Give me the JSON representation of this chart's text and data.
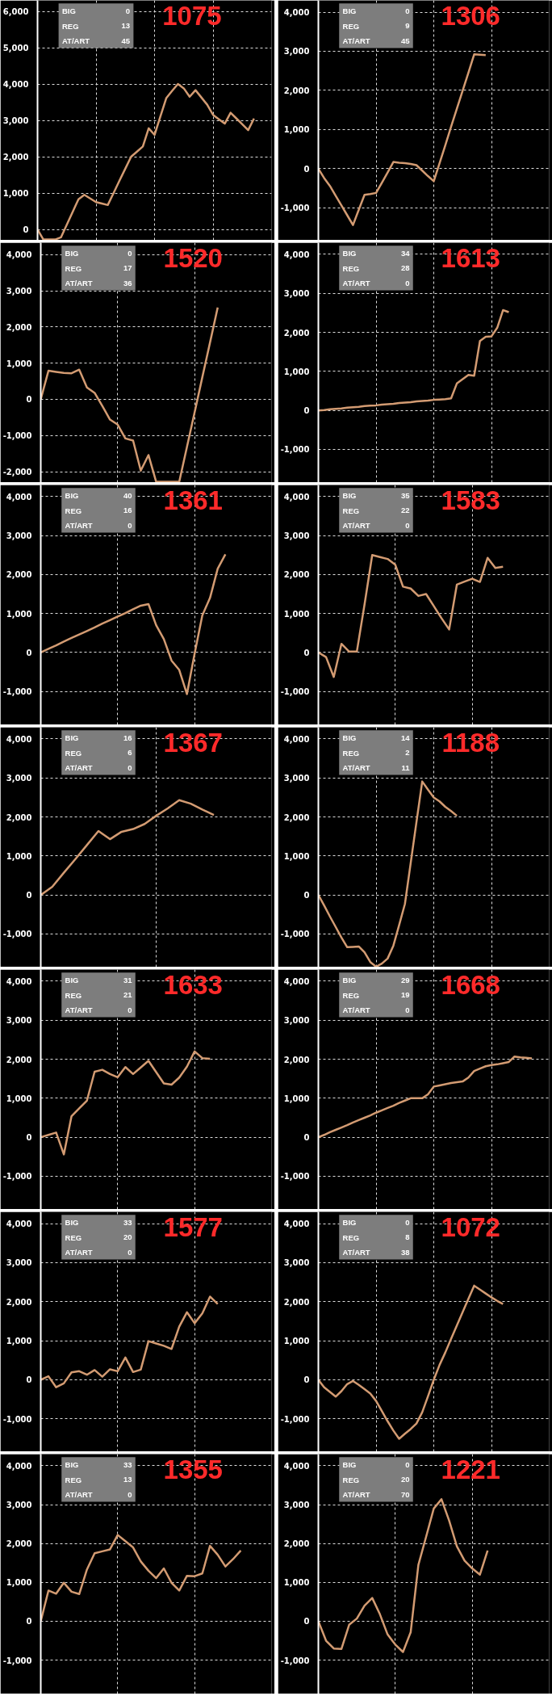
{
  "chart_data": [
    {
      "type": "line",
      "title": "1075",
      "annotations": [
        "BIG",
        "0",
        "REG",
        "13",
        "AT/ART",
        "45"
      ],
      "categories": [
        null,
        null,
        null,
        null,
        null,
        null,
        null,
        null,
        null,
        null,
        null,
        null,
        null,
        null,
        null,
        null,
        null,
        null,
        null,
        null,
        null,
        null,
        null,
        null,
        null,
        null,
        null,
        null,
        null,
        null,
        null,
        null,
        null,
        null,
        null,
        null,
        null,
        null,
        null,
        null,
        null
      ],
      "ylim": [
        -300,
        6300
      ],
      "yticks": [
        0,
        {
          "value": 1000,
          "label": "1,000"
        },
        {
          "value": 2000,
          "label": "2,000"
        },
        {
          "value": 3000,
          "label": "3,000"
        },
        {
          "value": 4000,
          "label": "4,000"
        },
        {
          "value": 5000,
          "label": "5,000"
        },
        {
          "value": 6000,
          "label": "6,000"
        }
      ],
      "grid": true,
      "tick_labels": "y",
      "series": [
        {
          "color": "#d39b72",
          "values": [
            0,
            -280,
            -280,
            -280,
            -220,
            130,
            480,
            830,
            950,
            850,
            750,
            710,
            670,
            1000,
            1340,
            1670,
            2000,
            2140,
            2280,
            2780,
            2600,
            3110,
            3610,
            3810,
            4000,
            3880,
            3650,
            3830,
            3630,
            3430,
            3150,
            3030,
            2910,
            3210,
            3050,
            2890,
            2730,
            3050,
            null,
            null,
            null
          ]
        }
      ]
    },
    {
      "type": "line",
      "title": "1306",
      "annotations": [
        "BIG",
        "0",
        "REG",
        "9",
        "AT/ART",
        "45"
      ],
      "categories": [
        null,
        null,
        null,
        null,
        null,
        null,
        null,
        null,
        null,
        null,
        null,
        null,
        null,
        null,
        null,
        null,
        null,
        null,
        null,
        null,
        null,
        null,
        null,
        null,
        null,
        null,
        null,
        null,
        null,
        null,
        null,
        null,
        null,
        null,
        null,
        null,
        null,
        null,
        null,
        null,
        null
      ],
      "ylim": [
        -1830,
        4300
      ],
      "yticks": [
        {
          "value": -1000,
          "label": "-1,000"
        },
        0,
        {
          "value": 1000,
          "label": "1,000"
        },
        {
          "value": 2000,
          "label": "2,000"
        },
        {
          "value": 3000,
          "label": "3,000"
        },
        {
          "value": 4000,
          "label": "4,000"
        }
      ],
      "grid": true,
      "tick_labels": "y",
      "series": [
        {
          "color": "#d39b72",
          "values": [
            0,
            -240,
            -440,
            -690,
            -940,
            -1190,
            -1440,
            -1050,
            -670,
            -650,
            -620,
            -360,
            -100,
            170,
            150,
            140,
            120,
            90,
            -50,
            -190,
            -320,
            140,
            600,
            1070,
            1530,
            1990,
            2450,
            2920,
            2910,
            2900,
            null,
            null,
            null,
            null,
            null,
            null,
            null,
            null,
            null,
            null,
            null
          ]
        }
      ]
    },
    {
      "type": "line",
      "title": "1520",
      "annotations": [
        "BIG",
        "0",
        "REG",
        "17",
        "AT/ART",
        "36"
      ],
      "categories": [
        null,
        null,
        null,
        null,
        null,
        null,
        null,
        null,
        null,
        null,
        null,
        null,
        null,
        null,
        null,
        null,
        null,
        null,
        null,
        null,
        null,
        null,
        null,
        null,
        null,
        null,
        null,
        null,
        null,
        null,
        null
      ],
      "ylim": [
        -2300,
        4330
      ],
      "yticks": [
        {
          "value": -2000,
          "label": "-2,000"
        },
        {
          "value": -1000,
          "label": "-1,000"
        },
        0,
        {
          "value": 1000,
          "label": "1,000"
        },
        {
          "value": 2000,
          "label": "2,000"
        },
        {
          "value": 3000,
          "label": "3,000"
        },
        {
          "value": 4000,
          "label": "4,000"
        }
      ],
      "grid": true,
      "tick_labels": "y",
      "series": [
        {
          "color": "#d39b72",
          "values": [
            0,
            790,
            760,
            730,
            720,
            820,
            330,
            180,
            -180,
            -560,
            -700,
            -1080,
            -1140,
            -1970,
            -1540,
            -2280,
            -2280,
            -2280,
            -2280,
            -1320,
            -360,
            610,
            1570,
            2540,
            null,
            null,
            null,
            null,
            null,
            null,
            null
          ]
        }
      ]
    },
    {
      "type": "line",
      "title": "1613",
      "annotations": [
        "BIG",
        "34",
        "REG",
        "28",
        "AT/ART",
        "0"
      ],
      "categories": [
        null,
        null,
        null,
        null,
        null,
        null,
        null,
        null,
        null,
        null,
        null,
        null,
        null,
        null,
        null,
        null,
        null,
        null,
        null,
        null,
        null,
        null,
        null,
        null,
        null,
        null,
        null,
        null,
        null,
        null,
        null,
        null,
        null,
        null,
        null,
        null,
        null,
        null,
        null,
        null,
        null
      ],
      "ylim": [
        -1850,
        4300
      ],
      "yticks": [
        {
          "value": -1000,
          "label": "-1,000"
        },
        0,
        {
          "value": 1000,
          "label": "1,000"
        },
        {
          "value": 2000,
          "label": "2,000"
        },
        {
          "value": 3000,
          "label": "3,000"
        },
        {
          "value": 4000,
          "label": "4,000"
        }
      ],
      "grid": true,
      "tick_labels": "y",
      "series": [
        {
          "color": "#d39b72",
          "values": [
            0,
            10,
            30,
            40,
            50,
            70,
            80,
            90,
            110,
            120,
            130,
            150,
            160,
            170,
            190,
            200,
            210,
            230,
            240,
            250,
            270,
            280,
            290,
            310,
            690,
            800,
            910,
            890,
            1780,
            1890,
            1900,
            2120,
            2570,
            2520,
            null,
            null,
            null,
            null,
            null,
            null,
            null
          ]
        }
      ]
    },
    {
      "type": "line",
      "title": "1361",
      "annotations": [
        "BIG",
        "40",
        "REG",
        "16",
        "AT/ART",
        "0"
      ],
      "categories": [
        null,
        null,
        null,
        null,
        null,
        null,
        null,
        null,
        null,
        null,
        null,
        null,
        null,
        null,
        null,
        null,
        null,
        null,
        null,
        null,
        null,
        null,
        null,
        null,
        null,
        null,
        null,
        null,
        null,
        null,
        null
      ],
      "ylim": [
        -1860,
        4300
      ],
      "yticks": [
        {
          "value": -1000,
          "label": "-1,000"
        },
        0,
        {
          "value": 1000,
          "label": "1,000"
        },
        {
          "value": 2000,
          "label": "2,000"
        },
        {
          "value": 3000,
          "label": "3,000"
        },
        {
          "value": 4000,
          "label": "4,000"
        }
      ],
      "grid": true,
      "tick_labels": "y",
      "series": [
        {
          "color": "#d39b72",
          "values": [
            0,
            90,
            180,
            280,
            370,
            460,
            550,
            640,
            740,
            830,
            920,
            1010,
            1110,
            1200,
            1240,
            700,
            340,
            -210,
            -450,
            -1070,
            -30,
            950,
            1400,
            2150,
            2520,
            null,
            null,
            null,
            null,
            null,
            null
          ]
        }
      ]
    },
    {
      "type": "line",
      "title": "1583",
      "annotations": [
        "BIG",
        "35",
        "REG",
        "22",
        "AT/ART",
        "0"
      ],
      "categories": [
        null,
        null,
        null,
        null,
        null,
        null,
        null,
        null,
        null,
        null,
        null,
        null,
        null,
        null,
        null,
        null,
        null,
        null,
        null,
        null,
        null,
        null,
        null,
        null,
        null,
        null,
        null,
        null,
        null,
        null,
        null
      ],
      "ylim": [
        -1860,
        4300
      ],
      "yticks": [
        {
          "value": -1000,
          "label": "-1,000"
        },
        0,
        {
          "value": 1000,
          "label": "1,000"
        },
        {
          "value": 2000,
          "label": "2,000"
        },
        {
          "value": 3000,
          "label": "3,000"
        },
        {
          "value": 4000,
          "label": "4,000"
        }
      ],
      "grid": true,
      "tick_labels": "y",
      "series": [
        {
          "color": "#d39b72",
          "values": [
            0,
            -120,
            -630,
            220,
            20,
            20,
            1230,
            2500,
            2450,
            2400,
            2250,
            1690,
            1640,
            1450,
            1500,
            1190,
            880,
            590,
            1740,
            1820,
            1890,
            1810,
            2430,
            2170,
            2200,
            null,
            null,
            null,
            null,
            null,
            null
          ]
        }
      ]
    },
    {
      "type": "line",
      "title": "1367",
      "annotations": [
        "BIG",
        "16",
        "REG",
        "6",
        "AT/ART",
        "0"
      ],
      "categories": [
        null,
        null,
        null,
        null,
        null,
        null,
        null,
        null,
        null,
        null,
        null,
        null,
        null,
        null,
        null,
        null,
        null,
        null,
        null,
        null,
        null
      ],
      "ylim": [
        -1850,
        4300
      ],
      "yticks": [
        {
          "value": -1000,
          "label": "-1,000"
        },
        0,
        {
          "value": 1000,
          "label": "1,000"
        },
        {
          "value": 2000,
          "label": "2,000"
        },
        {
          "value": 3000,
          "label": "3,000"
        },
        {
          "value": 4000,
          "label": "4,000"
        }
      ],
      "grid": true,
      "tick_labels": "y",
      "series": [
        {
          "color": "#d39b72",
          "values": [
            0,
            210,
            570,
            920,
            1280,
            1640,
            1430,
            1620,
            1690,
            1820,
            2030,
            2220,
            2430,
            2340,
            2190,
            2050,
            null,
            null,
            null,
            null,
            null
          ]
        }
      ]
    },
    {
      "type": "line",
      "title": "1188",
      "annotations": [
        "BIG",
        "14",
        "REG",
        "2",
        "AT/ART",
        "11"
      ],
      "categories": [
        null,
        null,
        null,
        null,
        null,
        null,
        null,
        null,
        null,
        null,
        null,
        null,
        null,
        null,
        null,
        null,
        null,
        null,
        null,
        null,
        null,
        null,
        null,
        null,
        null,
        null,
        null,
        null,
        null,
        null,
        null,
        null,
        null,
        null,
        null,
        null,
        null,
        null,
        null,
        null,
        null
      ],
      "ylim": [
        -1850,
        4300
      ],
      "yticks": [
        {
          "value": -1000,
          "label": "-1,000"
        },
        0,
        {
          "value": 1000,
          "label": "1,000"
        },
        {
          "value": 2000,
          "label": "2,000"
        },
        {
          "value": 3000,
          "label": "3,000"
        },
        {
          "value": 4000,
          "label": "4,000"
        }
      ],
      "grid": true,
      "tick_labels": "y",
      "series": [
        {
          "color": "#d39b72",
          "values": [
            0,
            -270,
            -550,
            -820,
            -1090,
            -1340,
            -1330,
            -1320,
            -1470,
            -1720,
            -1840,
            -1760,
            -1630,
            -1300,
            -770,
            -230,
            820,
            1870,
            2910,
            2700,
            2500,
            2400,
            2260,
            2150,
            2030,
            null,
            null,
            null,
            null,
            null,
            null,
            null,
            null,
            null,
            null,
            null,
            null,
            null,
            null,
            null,
            null
          ]
        }
      ]
    },
    {
      "type": "line",
      "title": "1633",
      "annotations": [
        "BIG",
        "31",
        "REG",
        "21",
        "AT/ART",
        "0"
      ],
      "categories": [
        null,
        null,
        null,
        null,
        null,
        null,
        null,
        null,
        null,
        null,
        null,
        null,
        null,
        null,
        null,
        null,
        null,
        null,
        null,
        null,
        null,
        null,
        null,
        null,
        null,
        null,
        null,
        null,
        null,
        null,
        null
      ],
      "ylim": [
        -1850,
        4300
      ],
      "yticks": [
        {
          "value": -1000,
          "label": "-1,000"
        },
        0,
        {
          "value": 1000,
          "label": "1,000"
        },
        {
          "value": 2000,
          "label": "2,000"
        },
        {
          "value": 3000,
          "label": "3,000"
        },
        {
          "value": 4000,
          "label": "4,000"
        }
      ],
      "grid": true,
      "tick_labels": "y",
      "series": [
        {
          "color": "#d39b72",
          "values": [
            0,
            60,
            120,
            -440,
            540,
            740,
            940,
            1680,
            1730,
            1620,
            1540,
            1800,
            1620,
            1790,
            1960,
            1670,
            1380,
            1350,
            1530,
            1810,
            2200,
            2030,
            2010,
            null,
            null,
            null,
            null,
            null,
            null,
            null,
            null
          ]
        }
      ]
    },
    {
      "type": "line",
      "title": "1668",
      "annotations": [
        "BIG",
        "29",
        "REG",
        "19",
        "AT/ART",
        "0"
      ],
      "categories": [
        null,
        null,
        null,
        null,
        null,
        null,
        null,
        null,
        null,
        null,
        null,
        null,
        null,
        null,
        null,
        null,
        null,
        null,
        null,
        null,
        null,
        null,
        null,
        null,
        null,
        null,
        null,
        null,
        null,
        null,
        null,
        null,
        null,
        null,
        null,
        null,
        null,
        null,
        null,
        null,
        null
      ],
      "ylim": [
        -1850,
        4300
      ],
      "yticks": [
        {
          "value": -1000,
          "label": "-1,000"
        },
        0,
        {
          "value": 1000,
          "label": "1,000"
        },
        {
          "value": 2000,
          "label": "2,000"
        },
        {
          "value": 3000,
          "label": "3,000"
        },
        {
          "value": 4000,
          "label": "4,000"
        }
      ],
      "grid": true,
      "tick_labels": "y",
      "series": [
        {
          "color": "#d39b72",
          "values": [
            0,
            60,
            130,
            190,
            250,
            310,
            380,
            440,
            500,
            560,
            630,
            690,
            750,
            810,
            880,
            940,
            1000,
            1000,
            1000,
            1100,
            1300,
            1330,
            1360,
            1390,
            1410,
            1430,
            1530,
            1700,
            1760,
            1820,
            1850,
            1870,
            1900,
            1930,
            2070,
            2050,
            2040,
            2020,
            null,
            null,
            null
          ]
        }
      ]
    },
    {
      "type": "line",
      "title": "1577",
      "annotations": [
        "BIG",
        "33",
        "REG",
        "20",
        "AT/ART",
        "0"
      ],
      "categories": [
        null,
        null,
        null,
        null,
        null,
        null,
        null,
        null,
        null,
        null,
        null,
        null,
        null,
        null,
        null,
        null,
        null,
        null,
        null,
        null,
        null,
        null,
        null,
        null,
        null,
        null,
        null,
        null,
        null,
        null,
        null
      ],
      "ylim": [
        -1840,
        4300
      ],
      "yticks": [
        {
          "value": -1000,
          "label": "-1,000"
        },
        0,
        {
          "value": 1000,
          "label": "1,000"
        },
        {
          "value": 2000,
          "label": "2,000"
        },
        {
          "value": 3000,
          "label": "3,000"
        },
        {
          "value": 4000,
          "label": "4,000"
        }
      ],
      "grid": true,
      "tick_labels": "y",
      "series": [
        {
          "color": "#d39b72",
          "values": [
            0,
            90,
            -190,
            -90,
            190,
            220,
            130,
            250,
            80,
            270,
            220,
            570,
            200,
            260,
            990,
            930,
            870,
            790,
            1360,
            1730,
            1450,
            1700,
            2130,
            1940,
            null,
            null,
            null,
            null,
            null,
            null,
            null
          ]
        }
      ]
    },
    {
      "type": "line",
      "title": "1072",
      "annotations": [
        "BIG",
        "0",
        "REG",
        "8",
        "AT/ART",
        "38"
      ],
      "categories": [
        null,
        null,
        null,
        null,
        null,
        null,
        null,
        null,
        null,
        null,
        null,
        null,
        null,
        null,
        null,
        null,
        null,
        null,
        null,
        null,
        null,
        null,
        null,
        null,
        null,
        null,
        null,
        null,
        null,
        null,
        null,
        null,
        null,
        null,
        null,
        null,
        null,
        null,
        null,
        null,
        null
      ],
      "ylim": [
        -1840,
        4300
      ],
      "yticks": [
        {
          "value": -1000,
          "label": "-1,000"
        },
        0,
        {
          "value": 1000,
          "label": "1,000"
        },
        {
          "value": 2000,
          "label": "2,000"
        },
        {
          "value": 3000,
          "label": "3,000"
        },
        {
          "value": 4000,
          "label": "4,000"
        }
      ],
      "grid": true,
      "tick_labels": "y",
      "series": [
        {
          "color": "#d39b72",
          "values": [
            0,
            -190,
            -310,
            -430,
            -290,
            -110,
            -30,
            -130,
            -240,
            -350,
            -540,
            -800,
            -1060,
            -1300,
            -1510,
            -1380,
            -1260,
            -1120,
            -830,
            -420,
            0,
            380,
            700,
            1050,
            1390,
            1730,
            2070,
            2410,
            2310,
            2210,
            2110,
            2020,
            1940,
            null,
            null,
            null,
            null,
            null,
            null,
            null,
            null
          ]
        }
      ]
    },
    {
      "type": "line",
      "title": "1355",
      "annotations": [
        "BIG",
        "33",
        "REG",
        "13",
        "AT/ART",
        "0"
      ],
      "categories": [
        null,
        null,
        null,
        null,
        null,
        null,
        null,
        null,
        null,
        null,
        null,
        null,
        null,
        null,
        null,
        null,
        null,
        null,
        null,
        null,
        null,
        null,
        null,
        null,
        null,
        null,
        null,
        null,
        null,
        null,
        null
      ],
      "ylim": [
        -1870,
        4300
      ],
      "yticks": [
        {
          "value": -1000,
          "label": "-1,000"
        },
        0,
        {
          "value": 1000,
          "label": "1,000"
        },
        {
          "value": 2000,
          "label": "2,000"
        },
        {
          "value": 3000,
          "label": "3,000"
        },
        {
          "value": 4000,
          "label": "4,000"
        }
      ],
      "grid": true,
      "tick_labels": "y",
      "series": [
        {
          "color": "#d39b72",
          "values": [
            0,
            790,
            710,
            990,
            760,
            700,
            1330,
            1750,
            1800,
            1850,
            2220,
            2060,
            1900,
            1540,
            1300,
            1110,
            1360,
            990,
            790,
            1170,
            1160,
            1230,
            1940,
            1710,
            1410,
            1600,
            1820,
            null,
            null,
            null,
            null
          ]
        }
      ]
    },
    {
      "type": "line",
      "title": "1221",
      "annotations": [
        "BIG",
        "0",
        "REG",
        "20",
        "AT/ART",
        "70"
      ],
      "categories": [
        null,
        null,
        null,
        null,
        null,
        null,
        null,
        null,
        null,
        null,
        null,
        null,
        null,
        null,
        null,
        null,
        null,
        null,
        null,
        null,
        null,
        null,
        null,
        null,
        null,
        null,
        null,
        null,
        null,
        null,
        null
      ],
      "ylim": [
        -1870,
        4300
      ],
      "yticks": [
        {
          "value": -1000,
          "label": "-1,000"
        },
        0,
        {
          "value": 1000,
          "label": "1,000"
        },
        {
          "value": 2000,
          "label": "2,000"
        },
        {
          "value": 3000,
          "label": "3,000"
        },
        {
          "value": 4000,
          "label": "4,000"
        }
      ],
      "grid": true,
      "tick_labels": "y",
      "series": [
        {
          "color": "#d39b72",
          "values": [
            0,
            -500,
            -700,
            -710,
            -90,
            70,
            400,
            600,
            180,
            -340,
            -600,
            -790,
            -280,
            1450,
            2170,
            2900,
            3140,
            2590,
            1930,
            1560,
            1360,
            1200,
            1820,
            null,
            null,
            null,
            null,
            null,
            null,
            null,
            null
          ]
        }
      ]
    }
  ]
}
